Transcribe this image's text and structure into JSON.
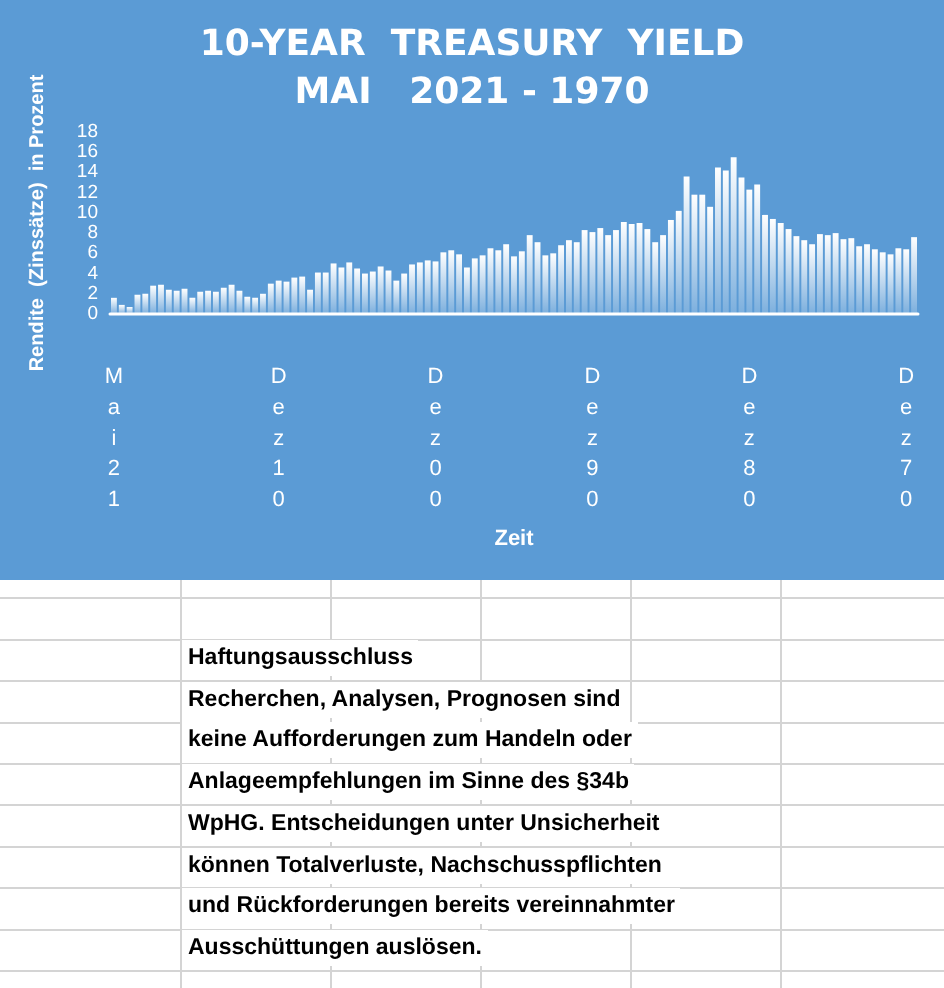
{
  "chart_data": {
    "type": "bar",
    "title": "10-YEAR  TREASURY  YIELD",
    "subtitle": "MAI   2021 - 1970",
    "xlabel": "Zeit",
    "ylabel": "Rendite  (Zinssätze)  in Prozent",
    "categories": [
      "Mai21",
      null,
      null,
      null,
      null,
      null,
      null,
      null,
      null,
      null,
      null,
      null,
      null,
      null,
      null,
      null,
      null,
      null,
      null,
      null,
      null,
      "Dez10",
      null,
      null,
      null,
      null,
      null,
      null,
      null,
      null,
      null,
      null,
      null,
      null,
      null,
      null,
      null,
      null,
      null,
      null,
      null,
      "Dez00",
      null,
      null,
      null,
      null,
      null,
      null,
      null,
      null,
      null,
      null,
      null,
      null,
      null,
      null,
      null,
      null,
      null,
      null,
      null,
      "Dez90",
      null,
      null,
      null,
      null,
      null,
      null,
      null,
      null,
      null,
      null,
      null,
      null,
      null,
      null,
      null,
      null,
      null,
      null,
      null,
      "Dez80",
      null,
      null,
      null,
      null,
      null,
      null,
      null,
      null,
      null,
      null,
      null,
      null,
      null,
      null,
      null,
      null,
      null,
      null,
      null,
      "Dez70",
      null
    ],
    "values": [
      1.6,
      0.9,
      0.7,
      1.9,
      2.0,
      2.8,
      2.9,
      2.4,
      2.3,
      2.5,
      1.6,
      2.2,
      2.3,
      2.2,
      2.6,
      2.9,
      2.3,
      1.7,
      1.6,
      2.0,
      3.0,
      3.3,
      3.2,
      3.6,
      3.7,
      2.4,
      4.1,
      4.1,
      5.0,
      4.6,
      5.1,
      4.5,
      4.0,
      4.2,
      4.7,
      4.3,
      3.3,
      4.0,
      4.9,
      5.1,
      5.3,
      5.2,
      6.1,
      6.3,
      5.9,
      4.6,
      5.5,
      5.8,
      6.5,
      6.3,
      6.9,
      5.7,
      6.2,
      7.8,
      7.1,
      5.8,
      6.0,
      6.8,
      7.3,
      7.1,
      8.3,
      8.1,
      8.5,
      7.8,
      8.3,
      9.1,
      8.9,
      9.0,
      8.4,
      7.1,
      7.8,
      9.3,
      10.2,
      13.6,
      11.8,
      11.8,
      10.6,
      14.5,
      14.2,
      15.5,
      13.5,
      12.3,
      12.8,
      9.8,
      9.4,
      9.0,
      8.4,
      7.7,
      7.3,
      6.9,
      7.9,
      7.8,
      8.0,
      7.4,
      7.5,
      6.7,
      6.9,
      6.4,
      6.1,
      5.9,
      6.5,
      6.4,
      7.6
    ],
    "color": "#ffffff",
    "ylim": [
      0,
      18
    ],
    "yticks": [
      0,
      2,
      4,
      6,
      8,
      10,
      12,
      14,
      16,
      18
    ],
    "grid": false,
    "annotations": [
      "Haftungsausschluss",
      "Recherchen, Analysen, Prognosen sind",
      "keine Aufforderungen zum Handeln oder",
      "Anlageempfehlungen im Sinne des §34b",
      "WpHG. Entscheidungen unter Unsicherheit",
      "können Totalverluste, Nachschusspflichten",
      "und Rückforderungen bereits vereinnahmter",
      "Ausschüttungen auslösen."
    ]
  }
}
